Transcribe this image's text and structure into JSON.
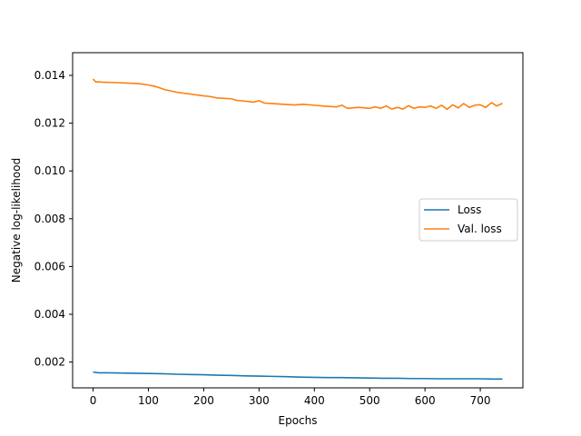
{
  "chart_data": {
    "type": "line",
    "xlabel": "Epochs",
    "ylabel": "Negative log-likelihood",
    "xlim": [
      -37,
      777
    ],
    "ylim": [
      0.00092,
      0.01495
    ],
    "xticks": [
      0,
      100,
      200,
      300,
      400,
      500,
      600,
      700
    ],
    "yticks": [
      0.002,
      0.004,
      0.006,
      0.008,
      0.01,
      0.012,
      0.014
    ],
    "ytick_labels": [
      "0.002",
      "0.004",
      "0.006",
      "0.008",
      "0.010",
      "0.012",
      "0.014"
    ],
    "grid": false,
    "legend_position": "center-right",
    "series": [
      {
        "name": "Loss",
        "color": "#1f77b4",
        "x": [
          0,
          10,
          25,
          50,
          75,
          100,
          125,
          150,
          175,
          200,
          225,
          250,
          275,
          300,
          325,
          350,
          375,
          400,
          425,
          450,
          475,
          500,
          525,
          550,
          575,
          600,
          625,
          650,
          675,
          700,
          725,
          740
        ],
        "y": [
          0.00158,
          0.00155,
          0.00155,
          0.00154,
          0.00153,
          0.00152,
          0.00151,
          0.00149,
          0.00148,
          0.00147,
          0.00145,
          0.00144,
          0.00142,
          0.00141,
          0.0014,
          0.00139,
          0.00137,
          0.00136,
          0.00135,
          0.00135,
          0.00134,
          0.00133,
          0.00132,
          0.00132,
          0.00131,
          0.00131,
          0.0013,
          0.0013,
          0.0013,
          0.0013,
          0.00129,
          0.00129
        ]
      },
      {
        "name": "Val. loss",
        "color": "#ff7f0e",
        "x": [
          0,
          5,
          10,
          20,
          40,
          60,
          80,
          100,
          110,
          120,
          130,
          150,
          175,
          200,
          210,
          225,
          250,
          260,
          275,
          290,
          300,
          310,
          325,
          350,
          365,
          380,
          400,
          420,
          440,
          450,
          460,
          480,
          500,
          510,
          520,
          530,
          540,
          550,
          560,
          570,
          580,
          590,
          600,
          610,
          620,
          630,
          640,
          650,
          660,
          670,
          680,
          690,
          700,
          710,
          720,
          730,
          740
        ],
        "y": [
          0.01385,
          0.01372,
          0.01373,
          0.01371,
          0.0137,
          0.01368,
          0.01366,
          0.0136,
          0.01355,
          0.01348,
          0.0134,
          0.0133,
          0.01322,
          0.01314,
          0.01312,
          0.01305,
          0.01302,
          0.01295,
          0.01292,
          0.01288,
          0.01294,
          0.01284,
          0.01282,
          0.01278,
          0.01276,
          0.01279,
          0.01275,
          0.01271,
          0.01268,
          0.01275,
          0.01262,
          0.01266,
          0.01262,
          0.01268,
          0.01262,
          0.01272,
          0.01259,
          0.01266,
          0.01259,
          0.01273,
          0.01262,
          0.01268,
          0.01266,
          0.01272,
          0.01262,
          0.01275,
          0.01258,
          0.01277,
          0.01264,
          0.01282,
          0.01266,
          0.01275,
          0.01277,
          0.01266,
          0.01286,
          0.01272,
          0.01283
        ]
      }
    ]
  }
}
